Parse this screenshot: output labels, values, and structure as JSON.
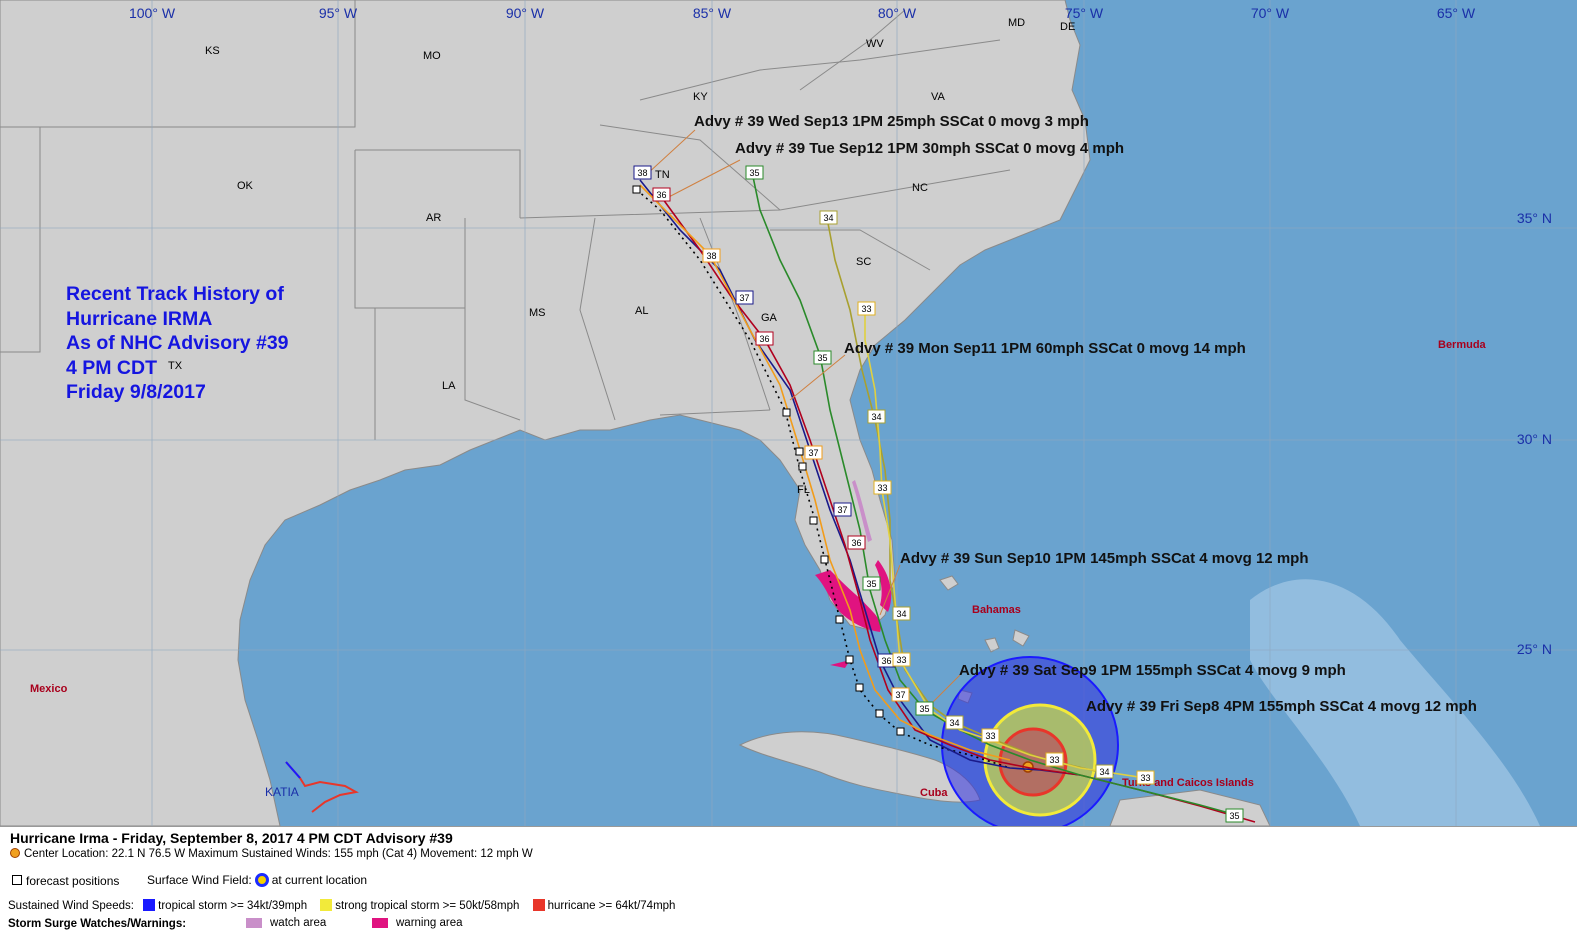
{
  "longitude_labels": [
    "100° W",
    "95° W",
    "90° W",
    "85° W",
    "80° W",
    "75° W",
    "70° W",
    "65° W"
  ],
  "latitude_labels": [
    "35° N",
    "30° N",
    "25° N"
  ],
  "states": [
    {
      "code": "KS"
    },
    {
      "code": "MO"
    },
    {
      "code": "KY"
    },
    {
      "code": "WV"
    },
    {
      "code": "VA"
    },
    {
      "code": "MD"
    },
    {
      "code": "DE"
    },
    {
      "code": "OK"
    },
    {
      "code": "AR"
    },
    {
      "code": "TN"
    },
    {
      "code": "NC"
    },
    {
      "code": "SC"
    },
    {
      "code": "MS"
    },
    {
      "code": "AL"
    },
    {
      "code": "GA"
    },
    {
      "code": "TX"
    },
    {
      "code": "LA"
    },
    {
      "code": "FL"
    }
  ],
  "places": [
    "Bermuda",
    "Bahamas",
    "Mexico",
    "Cuba",
    "Turks and Caicos Islands",
    "KATIA"
  ],
  "title_lines": [
    "Recent Track History of",
    "Hurricane IRMA",
    "As of NHC Advisory #39",
    "4 PM CDT",
    "Friday 9/8/2017"
  ],
  "annotations": [
    "Advy # 39 Wed Sep13 1PM  25mph SSCat 0 movg 3 mph",
    "Advy # 39 Tue Sep12 1PM  30mph SSCat 0 movg 4 mph",
    "Advy # 39 Mon Sep11 1PM  60mph SSCat 0 movg 14 mph",
    "Advy # 39 Sun Sep10 1PM  145mph SSCat 4 movg 12 mph",
    "Advy # 39 Sat Sep9 1PM  155mph SSCat 4 movg 9 mph",
    "Advy # 39 Fri Sep8 4PM  155mph SSCat 4 movg 12 mph"
  ],
  "track_labels": {
    "navy": [
      "38",
      "37",
      "37",
      "36"
    ],
    "red": [
      "36",
      "36",
      "36"
    ],
    "orange": [
      "38",
      "37",
      "37"
    ],
    "green": [
      "35",
      "35",
      "35",
      "35",
      "35"
    ],
    "olive": [
      "34",
      "34",
      "34",
      "34",
      "34"
    ],
    "yellow": [
      "33",
      "33",
      "33",
      "33",
      "33",
      "33"
    ]
  },
  "legend": {
    "line1": "Hurricane Irma  -  Friday, September 8, 2017  4 PM CDT   Advisory #39",
    "line2": "Center Location: 22.1 N  76.5 W   Maximum Sustained Winds: 155 mph (Cat 4) Movement: 12 mph W",
    "forecast_positions": "forecast positions",
    "surface_wind_field": "Surface Wind Field:",
    "at_current_location": "at current location",
    "sustained_wind_speeds": "Sustained Wind Speeds:",
    "tropical_storm": "tropical storm >= 34kt/39mph",
    "strong_tropical_storm": "strong tropical storm >= 50kt/58mph",
    "hurricane": "hurricane >= 64kt/74mph",
    "storm_surge": "Storm Surge Watches/Warnings:",
    "watch_area": "watch area",
    "warning_area": "warning area"
  },
  "colors": {
    "ocean": "#6aa3cf",
    "land": "#cfcfcf",
    "tropical_storm": "#1a1aff",
    "strong_tropical_storm": "#f2ea3a",
    "hurricane": "#e8362a",
    "watch": "#c98fc9",
    "warning": "#e01380",
    "title_text": "#1515e0"
  }
}
